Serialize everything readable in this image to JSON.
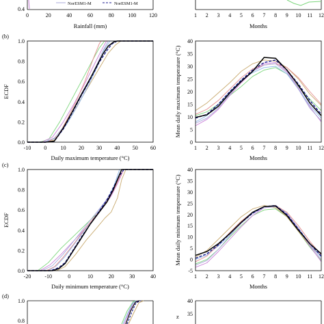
{
  "colors": {
    "observed": "#000000",
    "ensemble": "#1a1a8c",
    "gcm_palette": [
      "#7cd67c",
      "#c8a96e",
      "#c97fd8",
      "#8fb8e8",
      "#e38c8c",
      "#a9a9d9",
      "#d9b3e6",
      "#5fb0b0"
    ]
  },
  "panels": {
    "a": {
      "letter": "",
      "legend": [
        "NorESM1-M",
        "NorESM1-M"
      ],
      "left": {
        "xlabel": "Rainfall (mm)",
        "ylabel": "",
        "xtick_labels": [
          "0",
          "20",
          "40",
          "60",
          "80",
          "100",
          "120"
        ],
        "ytick_labels": [
          "0.4"
        ]
      },
      "right": {
        "xlabel": "Months",
        "ylabel": "",
        "xtick_labels": [
          "1",
          "2",
          "3",
          "4",
          "5",
          "6",
          "7",
          "8",
          "9",
          "10",
          "11",
          "12"
        ]
      }
    },
    "b": {
      "letter": "(b)",
      "left": {
        "xlabel": "Daily maximum temperature (°C)",
        "ylabel": "ECDF",
        "xtick_labels": [
          "-10",
          "0",
          "10",
          "20",
          "30",
          "40",
          "50",
          "60"
        ],
        "ytick_labels": [
          "0.0",
          "0.2",
          "0.4",
          "0.6",
          "0.8",
          "1.0"
        ]
      },
      "right": {
        "xlabel": "Months",
        "ylabel": "Mean daily maximum temperature (°C)",
        "xtick_labels": [
          "1",
          "2",
          "3",
          "4",
          "5",
          "6",
          "7",
          "8",
          "9",
          "10",
          "11",
          "12"
        ],
        "ytick_labels": [
          "0",
          "5",
          "10",
          "15",
          "20",
          "25",
          "30",
          "35",
          "40"
        ]
      }
    },
    "c": {
      "letter": "(c)",
      "left": {
        "xlabel": "Daily minimum temperature (°C)",
        "ylabel": "ECDF",
        "xtick_labels": [
          "-20",
          "-10",
          "0",
          "10",
          "20",
          "30",
          "40"
        ],
        "ytick_labels": [
          "0.0",
          "0.2",
          "0.4",
          "0.6",
          "0.8",
          "1.0"
        ]
      },
      "right": {
        "xlabel": "Months",
        "ylabel": "Mean daily minimum temperature (°C)",
        "xtick_labels": [
          "1",
          "2",
          "3",
          "4",
          "5",
          "6",
          "7",
          "8",
          "9",
          "10",
          "11",
          "12"
        ],
        "ytick_labels": [
          "-5",
          "0",
          "5",
          "10",
          "15",
          "20",
          "25",
          "30",
          "35",
          "40"
        ]
      }
    },
    "d": {
      "letter": "(d)",
      "left": {
        "ytick_labels": [
          "0.8",
          "1.0"
        ]
      },
      "right": {
        "ytick_labels": [
          "30",
          "35",
          "40"
        ]
      }
    }
  },
  "chart_data": [
    {
      "id": "b-left",
      "type": "line",
      "xlim": [
        -10,
        60
      ],
      "ylim": [
        0,
        1
      ],
      "series": [
        {
          "style": "observed",
          "x": [
            -10,
            0,
            5,
            10,
            15,
            20,
            25,
            30,
            32,
            35,
            38,
            40,
            60
          ],
          "y": [
            0,
            0,
            0.01,
            0.14,
            0.3,
            0.47,
            0.63,
            0.8,
            0.87,
            0.95,
            0.99,
            1,
            1
          ]
        },
        {
          "style": "ensemble",
          "x": [
            -10,
            0,
            5,
            10,
            15,
            20,
            25,
            30,
            34,
            37,
            40,
            60
          ],
          "y": [
            0,
            0,
            0.01,
            0.13,
            0.29,
            0.46,
            0.62,
            0.79,
            0.9,
            0.97,
            1,
            1
          ]
        },
        {
          "style": "gcm",
          "x": [
            -10,
            -3,
            2,
            8,
            14,
            20,
            26,
            30,
            33,
            60
          ],
          "y": [
            0,
            0,
            0.03,
            0.2,
            0.4,
            0.6,
            0.8,
            0.93,
            1,
            1
          ]
        },
        {
          "style": "gcm",
          "x": [
            -10,
            0,
            5,
            10,
            15,
            20,
            25,
            30,
            35,
            39,
            42,
            60
          ],
          "y": [
            0,
            0,
            0.02,
            0.13,
            0.27,
            0.43,
            0.58,
            0.73,
            0.88,
            0.96,
            1,
            1
          ]
        },
        {
          "style": "gcm",
          "x": [
            -10,
            -2,
            4,
            10,
            16,
            22,
            27,
            31,
            34,
            60
          ],
          "y": [
            0,
            0,
            0.05,
            0.2,
            0.38,
            0.58,
            0.76,
            0.9,
            1,
            1
          ]
        },
        {
          "style": "gcm",
          "x": [
            -10,
            0,
            6,
            12,
            18,
            24,
            29,
            33,
            36,
            60
          ],
          "y": [
            0,
            0,
            0.04,
            0.18,
            0.36,
            0.56,
            0.75,
            0.92,
            1,
            1
          ]
        },
        {
          "style": "gcm",
          "x": [
            -10,
            1,
            7,
            12,
            17,
            22,
            27,
            30,
            31,
            60
          ],
          "y": [
            0,
            0,
            0.06,
            0.22,
            0.4,
            0.6,
            0.84,
            0.97,
            1,
            1
          ]
        },
        {
          "style": "gcm",
          "x": [
            -10,
            -1,
            5,
            11,
            17,
            23,
            28,
            32,
            35,
            60
          ],
          "y": [
            0,
            0,
            0.04,
            0.17,
            0.36,
            0.55,
            0.74,
            0.9,
            1,
            1
          ]
        }
      ]
    },
    {
      "id": "b-right",
      "type": "line",
      "xlim": [
        1,
        12
      ],
      "ylim": [
        0,
        40
      ],
      "series": [
        {
          "style": "observed",
          "x": [
            1,
            2,
            3,
            4,
            5,
            6,
            7,
            8,
            9,
            10,
            11,
            12
          ],
          "y": [
            9.8,
            10.8,
            14.2,
            19.5,
            24,
            28,
            33.5,
            33.2,
            28.5,
            22.5,
            15.5,
            10.5
          ]
        },
        {
          "style": "ensemble",
          "x": [
            1,
            2,
            3,
            4,
            5,
            6,
            7,
            8,
            9,
            10,
            11,
            12
          ],
          "y": [
            9.5,
            11,
            15,
            20,
            24.5,
            28.5,
            31.5,
            32.5,
            28.5,
            23,
            16.5,
            11
          ]
        },
        {
          "style": "gcm",
          "x": [
            1,
            2,
            3,
            4,
            5,
            6,
            7,
            8,
            9,
            10,
            11,
            12
          ],
          "y": [
            10.5,
            12,
            15,
            18.5,
            22,
            26,
            28.5,
            29.5,
            27,
            22,
            17,
            12.5
          ]
        },
        {
          "style": "gcm",
          "x": [
            1,
            2,
            3,
            4,
            5,
            6,
            7,
            8,
            9,
            10,
            11,
            12
          ],
          "y": [
            12.5,
            15.5,
            19.5,
            23.5,
            28,
            31,
            32.5,
            32,
            29.5,
            25,
            19,
            14.5
          ]
        },
        {
          "style": "gcm",
          "x": [
            1,
            2,
            3,
            4,
            5,
            6,
            7,
            8,
            9,
            10,
            11,
            12
          ],
          "y": [
            6.5,
            9,
            13,
            18.5,
            23.5,
            28,
            31,
            31.5,
            28,
            21.5,
            14,
            8
          ]
        },
        {
          "style": "gcm",
          "x": [
            1,
            2,
            3,
            4,
            5,
            6,
            7,
            8,
            9,
            10,
            11,
            12
          ],
          "y": [
            8,
            10.5,
            15,
            20,
            24.5,
            27.5,
            29.5,
            30,
            27,
            21,
            14.5,
            9.5
          ]
        },
        {
          "style": "gcm",
          "x": [
            1,
            2,
            3,
            4,
            5,
            6,
            7,
            8,
            9,
            10,
            11,
            12
          ],
          "y": [
            11,
            13,
            16.5,
            21,
            25.5,
            29,
            30.5,
            31,
            29.5,
            25.5,
            20,
            15
          ]
        },
        {
          "style": "gcm",
          "x": [
            1,
            2,
            3,
            4,
            5,
            6,
            7,
            8,
            9,
            10,
            11,
            12
          ],
          "y": [
            7.5,
            9.5,
            13.5,
            19,
            24,
            28,
            30.5,
            31,
            27.5,
            21,
            13.5,
            8.5
          ]
        }
      ]
    },
    {
      "id": "c-left",
      "type": "line",
      "xlim": [
        -20,
        40
      ],
      "ylim": [
        0,
        1
      ],
      "series": [
        {
          "style": "observed",
          "x": [
            -20,
            -8,
            -5,
            -2,
            2,
            6,
            10,
            14,
            18,
            21,
            23,
            25,
            40
          ],
          "y": [
            0,
            0,
            0.02,
            0.07,
            0.2,
            0.33,
            0.46,
            0.57,
            0.68,
            0.8,
            0.9,
            1,
            1
          ]
        },
        {
          "style": "ensemble",
          "x": [
            -20,
            -9,
            -5,
            -2,
            2,
            6,
            10,
            14,
            18,
            21,
            24,
            26,
            40
          ],
          "y": [
            0,
            0,
            0.03,
            0.08,
            0.21,
            0.34,
            0.46,
            0.58,
            0.7,
            0.82,
            0.94,
            1,
            1
          ]
        },
        {
          "style": "gcm",
          "x": [
            -20,
            -15,
            -10,
            -4,
            2,
            8,
            14,
            19,
            23,
            25,
            40
          ],
          "y": [
            0,
            0,
            0.08,
            0.22,
            0.34,
            0.46,
            0.58,
            0.72,
            0.9,
            1,
            1
          ]
        },
        {
          "style": "gcm",
          "x": [
            -20,
            -6,
            -2,
            3,
            8,
            13,
            17,
            20,
            23,
            25,
            27,
            40
          ],
          "y": [
            0,
            0,
            0.04,
            0.16,
            0.3,
            0.42,
            0.52,
            0.58,
            0.72,
            0.9,
            1,
            1
          ]
        },
        {
          "style": "gcm",
          "x": [
            -20,
            -14,
            -9,
            -4,
            1,
            6,
            11,
            16,
            20,
            23,
            26,
            40
          ],
          "y": [
            0,
            0,
            0.06,
            0.16,
            0.27,
            0.38,
            0.5,
            0.62,
            0.74,
            0.86,
            1,
            1
          ]
        },
        {
          "style": "gcm",
          "x": [
            -20,
            -10,
            -6,
            -2,
            3,
            8,
            13,
            18,
            21,
            24,
            40
          ],
          "y": [
            0,
            0,
            0.05,
            0.14,
            0.28,
            0.42,
            0.56,
            0.7,
            0.82,
            1,
            1
          ]
        },
        {
          "style": "gcm",
          "x": [
            -20,
            -11,
            -7,
            -3,
            2,
            7,
            12,
            17,
            21,
            24,
            26,
            40
          ],
          "y": [
            0,
            0,
            0.04,
            0.13,
            0.26,
            0.4,
            0.53,
            0.66,
            0.79,
            0.92,
            1,
            1
          ]
        },
        {
          "style": "gcm",
          "x": [
            -20,
            -13,
            -8,
            -3,
            2,
            7,
            12,
            17,
            21,
            23,
            25,
            40
          ],
          "y": [
            0,
            0,
            0.05,
            0.16,
            0.29,
            0.42,
            0.55,
            0.68,
            0.8,
            0.92,
            1,
            1
          ]
        }
      ]
    },
    {
      "id": "c-right",
      "type": "line",
      "xlim": [
        1,
        12
      ],
      "ylim": [
        -5,
        40
      ],
      "series": [
        {
          "style": "observed",
          "x": [
            1,
            2,
            3,
            4,
            5,
            6,
            7,
            8,
            9,
            10,
            11,
            12
          ],
          "y": [
            1.8,
            3.5,
            7,
            11.5,
            16.5,
            21,
            23.5,
            23.8,
            19.5,
            13,
            7,
            2.5
          ]
        },
        {
          "style": "ensemble",
          "x": [
            1,
            2,
            3,
            4,
            5,
            6,
            7,
            8,
            9,
            10,
            11,
            12
          ],
          "y": [
            0.5,
            2.5,
            6.5,
            11.5,
            16.5,
            20.5,
            23.5,
            24,
            20,
            13.5,
            7,
            1.5
          ]
        },
        {
          "style": "gcm",
          "x": [
            1,
            2,
            3,
            4,
            5,
            6,
            7,
            8,
            9,
            10,
            11,
            12
          ],
          "y": [
            -2,
            0,
            4.5,
            10,
            15,
            19.5,
            22,
            22.5,
            19,
            12.5,
            5.5,
            -0.5
          ]
        },
        {
          "style": "gcm",
          "x": [
            1,
            2,
            3,
            4,
            5,
            6,
            7,
            8,
            9,
            10,
            11,
            12
          ],
          "y": [
            1,
            4,
            9,
            14,
            19,
            22.5,
            24,
            23,
            19,
            12.5,
            6,
            1.5
          ]
        },
        {
          "style": "gcm",
          "x": [
            1,
            2,
            3,
            4,
            5,
            6,
            7,
            8,
            9,
            10,
            11,
            12
          ],
          "y": [
            -3.5,
            -1.5,
            3.5,
            9,
            14.5,
            19.5,
            23,
            23.5,
            20,
            13.5,
            6,
            -1
          ]
        },
        {
          "style": "gcm",
          "x": [
            1,
            2,
            3,
            4,
            5,
            6,
            7,
            8,
            9,
            10,
            11,
            12
          ],
          "y": [
            0,
            2,
            6,
            11,
            16,
            20.5,
            23.5,
            24,
            20.5,
            14,
            7,
            1
          ]
        },
        {
          "style": "gcm",
          "x": [
            1,
            2,
            3,
            4,
            5,
            6,
            7,
            8,
            9,
            10,
            11,
            12
          ],
          "y": [
            -1,
            1.5,
            6.5,
            12,
            17,
            21,
            23.5,
            24,
            21,
            15,
            8,
            2
          ]
        },
        {
          "style": "gcm",
          "x": [
            1,
            2,
            3,
            4,
            5,
            6,
            7,
            8,
            9,
            10,
            11,
            12
          ],
          "y": [
            -2.5,
            -0.5,
            4.5,
            10.5,
            16,
            20.5,
            23,
            23.5,
            20.5,
            14,
            6.5,
            0
          ]
        }
      ]
    }
  ]
}
